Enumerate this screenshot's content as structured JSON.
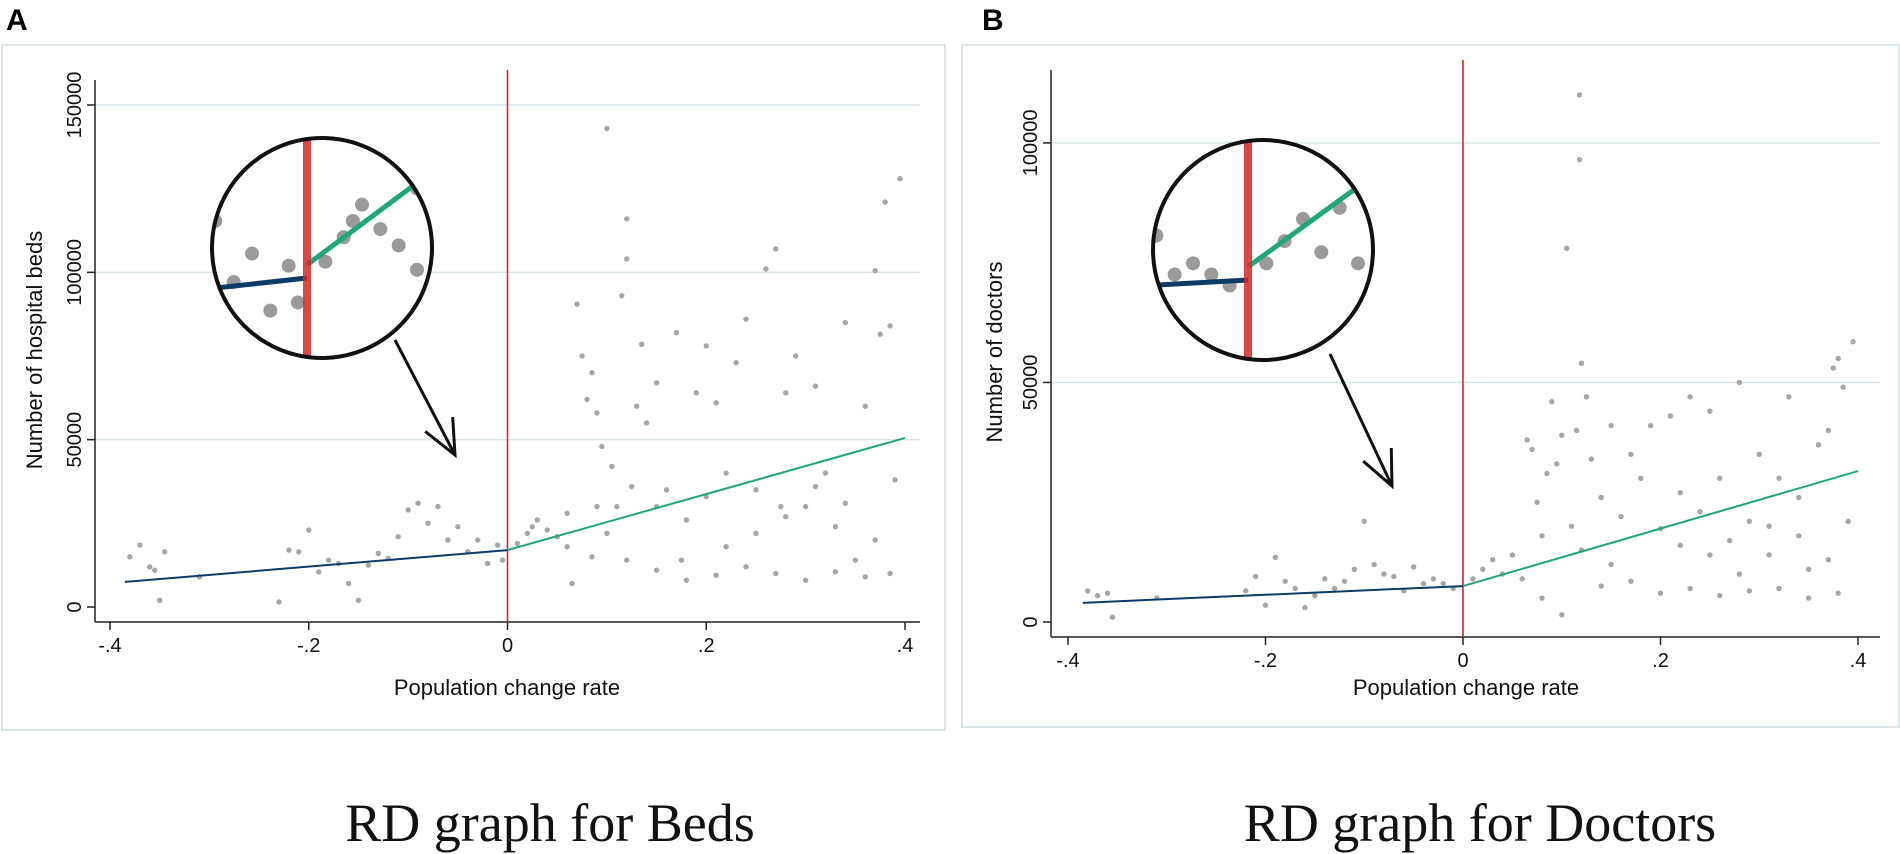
{
  "panels": [
    {
      "letter": "A",
      "caption": "RD graph for Beds"
    },
    {
      "letter": "B",
      "caption": "RD graph for Doctors"
    }
  ],
  "chart_data": [
    {
      "type": "scatter",
      "title": "RD graph for Beds",
      "xlabel": "Population change rate",
      "ylabel": "Number of hospital beds",
      "xlim": [
        -0.4,
        0.4
      ],
      "ylim": [
        0,
        150000
      ],
      "xticks": [
        -0.4,
        -0.2,
        0,
        0.2,
        0.4
      ],
      "xtick_labels": [
        "-.4",
        "-.2",
        "0",
        ".2",
        ".4"
      ],
      "yticks": [
        0,
        50000,
        100000,
        150000
      ],
      "ytick_labels": [
        "0",
        "50000",
        "100000",
        "150000"
      ],
      "grid": true,
      "cutoff": 0,
      "colors": {
        "points": "#a6a6a6",
        "left_fit": "#0d3b66",
        "right_fit": "#1fa67a",
        "cutoff": "#d62728",
        "grid": "#d6e4ea"
      },
      "fit_left": {
        "x": [
          -0.385,
          0
        ],
        "y": [
          7500,
          17000
        ]
      },
      "fit_right": {
        "x": [
          0,
          0.4
        ],
        "y": [
          17000,
          50500
        ]
      },
      "points": [
        [
          -0.38,
          15000
        ],
        [
          -0.37,
          18500
        ],
        [
          -0.36,
          12000
        ],
        [
          -0.355,
          11000
        ],
        [
          -0.345,
          16500
        ],
        [
          -0.35,
          2000
        ],
        [
          -0.31,
          9000
        ],
        [
          -0.23,
          1500
        ],
        [
          -0.22,
          17000
        ],
        [
          -0.21,
          16500
        ],
        [
          -0.2,
          23000
        ],
        [
          -0.19,
          10500
        ],
        [
          -0.18,
          14000
        ],
        [
          -0.17,
          13000
        ],
        [
          -0.16,
          7000
        ],
        [
          -0.15,
          2000
        ],
        [
          -0.14,
          12500
        ],
        [
          -0.13,
          16000
        ],
        [
          -0.12,
          14500
        ],
        [
          -0.11,
          21000
        ],
        [
          -0.1,
          29000
        ],
        [
          -0.09,
          31000
        ],
        [
          -0.08,
          25000
        ],
        [
          -0.07,
          30000
        ],
        [
          -0.06,
          20000
        ],
        [
          -0.05,
          24000
        ],
        [
          -0.04,
          16500
        ],
        [
          -0.03,
          20000
        ],
        [
          -0.02,
          13000
        ],
        [
          -0.01,
          18500
        ],
        [
          -0.005,
          14000
        ],
        [
          0.01,
          19000
        ],
        [
          0.02,
          22000
        ],
        [
          0.025,
          24000
        ],
        [
          0.03,
          26000
        ],
        [
          0.04,
          23000
        ],
        [
          0.05,
          21000
        ],
        [
          0.06,
          18000
        ],
        [
          0.06,
          28000
        ],
        [
          0.065,
          7000
        ],
        [
          0.07,
          90500
        ],
        [
          0.075,
          75000
        ],
        [
          0.08,
          62000
        ],
        [
          0.085,
          70000
        ],
        [
          0.09,
          58000
        ],
        [
          0.095,
          48000
        ],
        [
          0.1,
          143000
        ],
        [
          0.105,
          42000
        ],
        [
          0.11,
          30000
        ],
        [
          0.115,
          93000
        ],
        [
          0.12,
          116000
        ],
        [
          0.12,
          104000
        ],
        [
          0.125,
          36000
        ],
        [
          0.13,
          60000
        ],
        [
          0.135,
          78500
        ],
        [
          0.14,
          55000
        ],
        [
          0.15,
          67000
        ],
        [
          0.16,
          35000
        ],
        [
          0.17,
          82000
        ],
        [
          0.175,
          14000
        ],
        [
          0.18,
          26000
        ],
        [
          0.19,
          64000
        ],
        [
          0.2,
          78000
        ],
        [
          0.21,
          61000
        ],
        [
          0.22,
          40000
        ],
        [
          0.23,
          73000
        ],
        [
          0.24,
          86000
        ],
        [
          0.25,
          22000
        ],
        [
          0.26,
          101000
        ],
        [
          0.27,
          107000
        ],
        [
          0.275,
          30000
        ],
        [
          0.28,
          64000
        ],
        [
          0.29,
          75000
        ],
        [
          0.3,
          30000
        ],
        [
          0.31,
          66000
        ],
        [
          0.32,
          40000
        ],
        [
          0.33,
          24000
        ],
        [
          0.34,
          85000
        ],
        [
          0.35,
          14000
        ],
        [
          0.36,
          60000
        ],
        [
          0.37,
          100500
        ],
        [
          0.375,
          81500
        ],
        [
          0.38,
          121000
        ],
        [
          0.385,
          84000
        ],
        [
          0.39,
          38000
        ],
        [
          0.395,
          128000
        ],
        [
          0.385,
          10000
        ],
        [
          0.36,
          9000
        ],
        [
          0.33,
          10500
        ],
        [
          0.3,
          8000
        ],
        [
          0.27,
          10000
        ],
        [
          0.24,
          12000
        ],
        [
          0.21,
          9500
        ],
        [
          0.18,
          8000
        ],
        [
          0.15,
          11000
        ],
        [
          0.12,
          14000
        ],
        [
          0.1,
          22000
        ],
        [
          0.09,
          30000
        ],
        [
          0.085,
          15000
        ],
        [
          0.15,
          30000
        ],
        [
          0.2,
          33000
        ],
        [
          0.22,
          18000
        ],
        [
          0.25,
          35000
        ],
        [
          0.28,
          27000
        ],
        [
          0.31,
          36000
        ],
        [
          0.34,
          31000
        ],
        [
          0.37,
          20000
        ]
      ]
    },
    {
      "type": "scatter",
      "title": "RD graph for Doctors",
      "xlabel": "Population change rate",
      "ylabel": "Number of doctors",
      "xlim": [
        -0.4,
        0.4
      ],
      "ylim": [
        0,
        110000
      ],
      "xticks": [
        -0.4,
        -0.2,
        0,
        0.2,
        0.4
      ],
      "xtick_labels": [
        "-.4",
        "-.2",
        "0",
        ".2",
        ".4"
      ],
      "yticks": [
        0,
        50000,
        100000
      ],
      "ytick_labels": [
        "0",
        "50000",
        "100000"
      ],
      "grid": true,
      "cutoff": 0,
      "colors": {
        "points": "#a6a6a6",
        "left_fit": "#0d3b66",
        "right_fit": "#1fa67a",
        "cutoff": "#d62728",
        "grid": "#d6e4ea"
      },
      "fit_left": {
        "x": [
          -0.385,
          0
        ],
        "y": [
          4000,
          7500
        ]
      },
      "fit_right": {
        "x": [
          0,
          0.4
        ],
        "y": [
          7500,
          31500
        ]
      },
      "points": [
        [
          -0.38,
          6500
        ],
        [
          -0.37,
          5500
        ],
        [
          -0.36,
          6000
        ],
        [
          -0.355,
          1000
        ],
        [
          -0.31,
          5000
        ],
        [
          -0.22,
          6500
        ],
        [
          -0.21,
          9500
        ],
        [
          -0.2,
          3500
        ],
        [
          -0.19,
          13500
        ],
        [
          -0.18,
          8500
        ],
        [
          -0.17,
          7000
        ],
        [
          -0.16,
          3000
        ],
        [
          -0.15,
          5500
        ],
        [
          -0.14,
          9000
        ],
        [
          -0.13,
          7000
        ],
        [
          -0.12,
          8500
        ],
        [
          -0.11,
          11000
        ],
        [
          -0.1,
          21000
        ],
        [
          -0.09,
          12000
        ],
        [
          -0.08,
          10000
        ],
        [
          -0.07,
          9500
        ],
        [
          -0.06,
          6500
        ],
        [
          -0.05,
          11500
        ],
        [
          -0.04,
          8000
        ],
        [
          -0.03,
          9000
        ],
        [
          -0.02,
          8000
        ],
        [
          -0.01,
          7000
        ],
        [
          0.01,
          9000
        ],
        [
          0.02,
          11000
        ],
        [
          0.03,
          13000
        ],
        [
          0.04,
          10000
        ],
        [
          0.05,
          14000
        ],
        [
          0.06,
          9000
        ],
        [
          0.065,
          38000
        ],
        [
          0.07,
          36000
        ],
        [
          0.075,
          25000
        ],
        [
          0.08,
          18000
        ],
        [
          0.085,
          31000
        ],
        [
          0.09,
          46000
        ],
        [
          0.095,
          33000
        ],
        [
          0.1,
          39000
        ],
        [
          0.105,
          78000
        ],
        [
          0.11,
          20000
        ],
        [
          0.115,
          40000
        ],
        [
          0.118,
          110000
        ],
        [
          0.118,
          96500
        ],
        [
          0.12,
          54000
        ],
        [
          0.125,
          47000
        ],
        [
          0.13,
          34000
        ],
        [
          0.14,
          26000
        ],
        [
          0.15,
          41000
        ],
        [
          0.16,
          22000
        ],
        [
          0.17,
          35000
        ],
        [
          0.18,
          30000
        ],
        [
          0.19,
          41000
        ],
        [
          0.2,
          19500
        ],
        [
          0.21,
          43000
        ],
        [
          0.22,
          27000
        ],
        [
          0.23,
          47000
        ],
        [
          0.24,
          23000
        ],
        [
          0.25,
          44000
        ],
        [
          0.26,
          30000
        ],
        [
          0.27,
          17000
        ],
        [
          0.28,
          50000
        ],
        [
          0.29,
          21000
        ],
        [
          0.3,
          35000
        ],
        [
          0.31,
          14000
        ],
        [
          0.32,
          30000
        ],
        [
          0.33,
          47000
        ],
        [
          0.34,
          26000
        ],
        [
          0.35,
          11000
        ],
        [
          0.36,
          37000
        ],
        [
          0.37,
          40000
        ],
        [
          0.375,
          53000
        ],
        [
          0.38,
          55000
        ],
        [
          0.385,
          49000
        ],
        [
          0.39,
          21000
        ],
        [
          0.395,
          58500
        ],
        [
          0.38,
          6000
        ],
        [
          0.35,
          5000
        ],
        [
          0.32,
          7000
        ],
        [
          0.29,
          6500
        ],
        [
          0.26,
          5500
        ],
        [
          0.23,
          7000
        ],
        [
          0.2,
          6000
        ],
        [
          0.17,
          8500
        ],
        [
          0.14,
          7500
        ],
        [
          0.12,
          15000
        ],
        [
          0.1,
          1500
        ],
        [
          0.08,
          5000
        ],
        [
          0.15,
          12000
        ],
        [
          0.22,
          16000
        ],
        [
          0.25,
          14000
        ],
        [
          0.28,
          10000
        ],
        [
          0.31,
          20000
        ],
        [
          0.34,
          18000
        ],
        [
          0.37,
          13000
        ]
      ]
    }
  ]
}
